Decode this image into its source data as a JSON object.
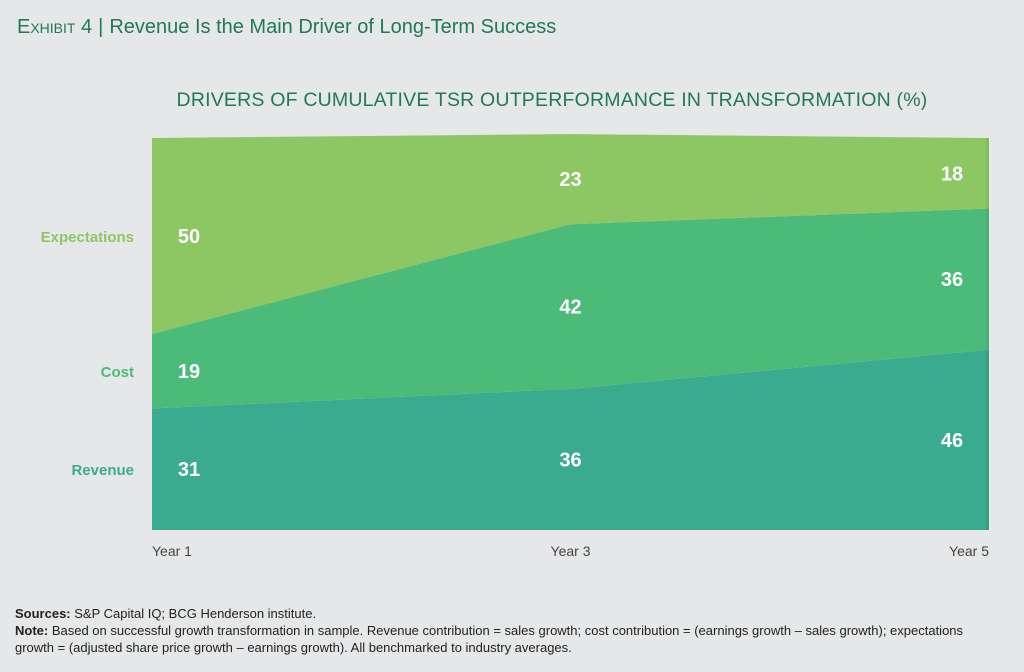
{
  "header": {
    "exhibit_label": "Exhibit 4",
    "exhibit_title": "Revenue Is the Main Driver of Long-Term Success"
  },
  "chart_data": {
    "type": "area",
    "stacked": true,
    "title": "DRIVERS OF CUMULATIVE TSR OUTPERFORMANCE IN TRANSFORMATION (%)",
    "categories": [
      "Year 1",
      "Year 3",
      "Year 5"
    ],
    "ylim": [
      0,
      100
    ],
    "grid": false,
    "legend_placement": "left",
    "series": [
      {
        "name": "Revenue",
        "values": [
          31,
          36,
          46
        ],
        "color": "#3aab8f"
      },
      {
        "name": "Cost",
        "values": [
          19,
          42,
          36
        ],
        "color": "#4cbb7a"
      },
      {
        "name": "Expectations",
        "values": [
          50,
          23,
          18
        ],
        "color": "#8cc763"
      }
    ]
  },
  "footer": {
    "sources_label": "Sources:",
    "sources_text": " S&P Capital IQ; BCG Henderson institute.",
    "note_label": "Note:",
    "note_text": " Based on successful growth transformation in sample. Revenue contribution = sales growth; cost contribution = (earnings growth – sales growth); expectations growth = (adjusted share price growth – earnings growth). All benchmarked to industry averages."
  }
}
